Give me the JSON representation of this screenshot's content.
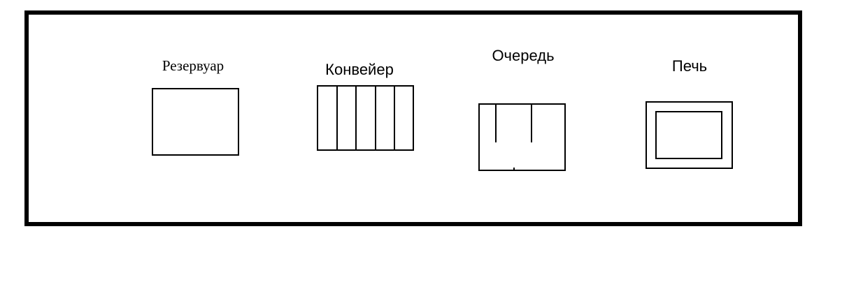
{
  "diagram": {
    "legend": [
      {
        "id": "reservoir",
        "label": "Резервуар",
        "icon": "reservoir-icon"
      },
      {
        "id": "conveyor",
        "label": "Конвейер",
        "icon": "conveyor-icon"
      },
      {
        "id": "queue",
        "label": "Очередь",
        "icon": "queue-icon"
      },
      {
        "id": "furnace",
        "label": "Печь",
        "icon": "furnace-icon"
      }
    ]
  },
  "colors": {
    "stroke": "#000000",
    "background": "#ffffff"
  }
}
